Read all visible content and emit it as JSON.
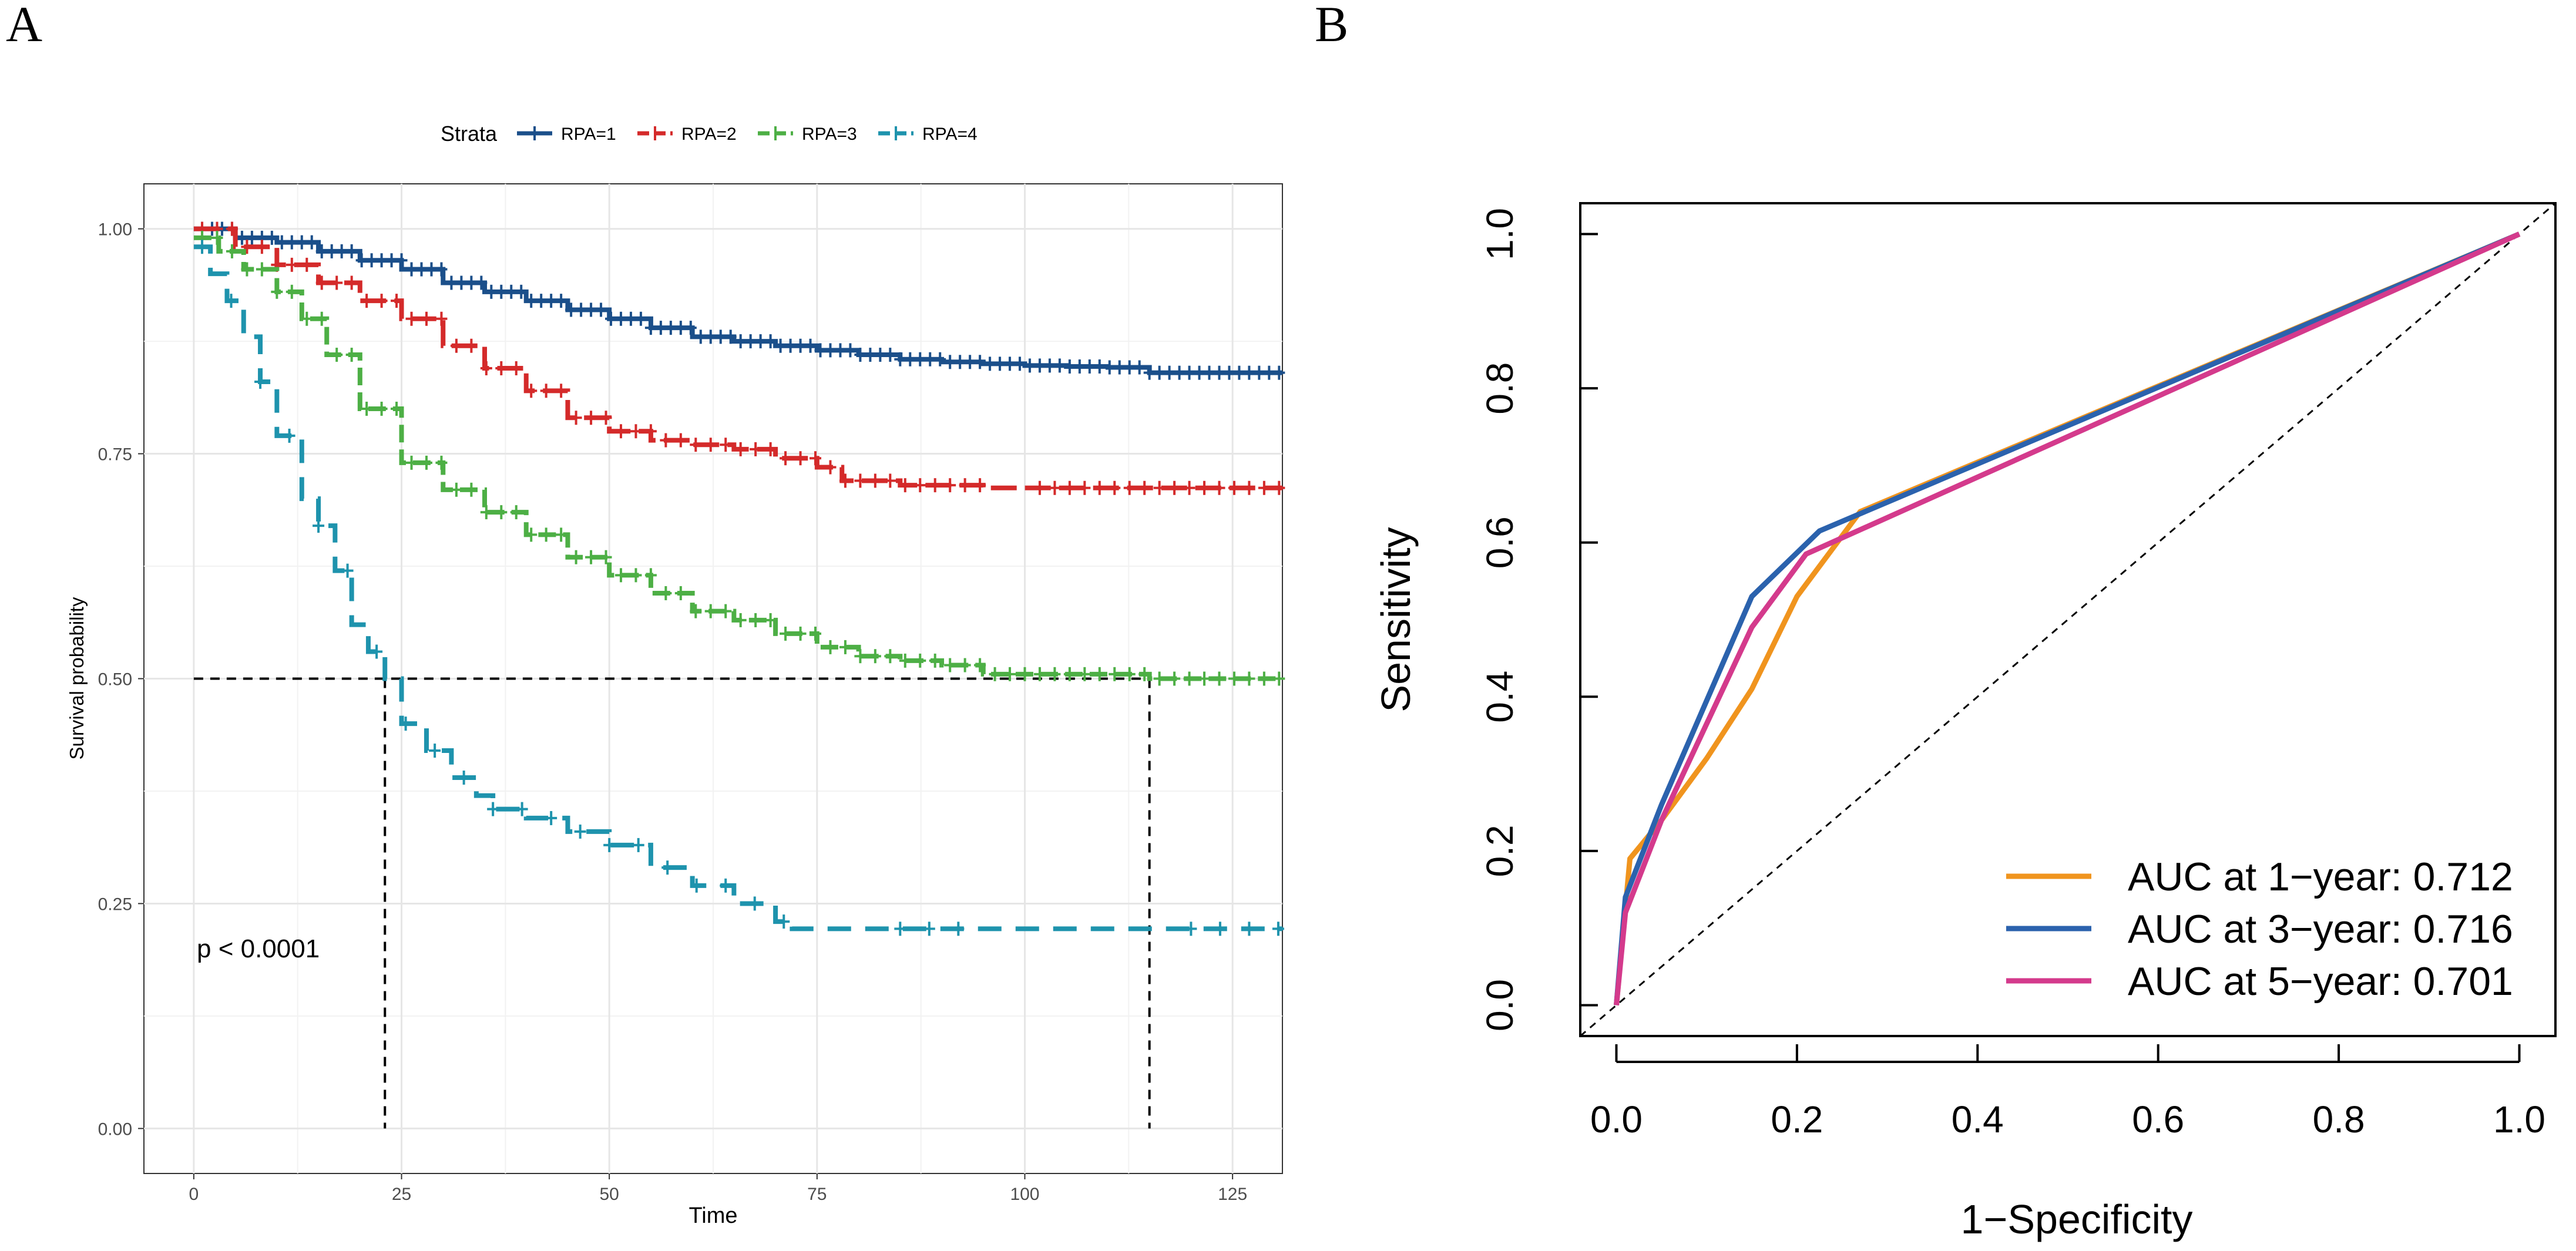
{
  "panels": {
    "a_label": "A",
    "b_label": "B"
  },
  "colors": {
    "rpa1": "#1B4F8A",
    "rpa2": "#D42A2A",
    "rpa3": "#4DAF45",
    "rpa4": "#1E93AD",
    "auc1": "#F0941E",
    "auc3": "#2B62AD",
    "auc5": "#D43A8C"
  },
  "chart_data": [
    {
      "type": "line",
      "subtype": "kaplan-meier",
      "title": "",
      "xlabel": "Time",
      "ylabel": "Survival probability",
      "xlim": [
        -6,
        131
      ],
      "ylim": [
        -0.05,
        1.05
      ],
      "xticks": [
        0,
        25,
        50,
        75,
        100,
        125
      ],
      "yticks": [
        0.0,
        0.25,
        0.5,
        0.75,
        1.0
      ],
      "ytick_labels": [
        "0.00",
        "0.25",
        "0.50",
        "0.75",
        "1.00"
      ],
      "legend_title": "Strata",
      "legend_position": "top",
      "annotation": "p < 0.0001",
      "median_line": {
        "y": 0.5,
        "x_end": 115,
        "medians": [
          23,
          115
        ]
      },
      "series": [
        {
          "name": "RPA=1",
          "color_key": "rpa1",
          "dash": "solid",
          "points": [
            [
              0,
              1.0
            ],
            [
              5,
              0.99
            ],
            [
              10,
              0.985
            ],
            [
              15,
              0.975
            ],
            [
              20,
              0.965
            ],
            [
              25,
              0.955
            ],
            [
              30,
              0.94
            ],
            [
              35,
              0.93
            ],
            [
              40,
              0.92
            ],
            [
              45,
              0.91
            ],
            [
              50,
              0.9
            ],
            [
              55,
              0.89
            ],
            [
              60,
              0.88
            ],
            [
              65,
              0.875
            ],
            [
              70,
              0.87
            ],
            [
              75,
              0.865
            ],
            [
              80,
              0.86
            ],
            [
              85,
              0.855
            ],
            [
              90,
              0.852
            ],
            [
              95,
              0.85
            ],
            [
              100,
              0.848
            ],
            [
              105,
              0.847
            ],
            [
              110,
              0.846
            ],
            [
              115,
              0.84
            ],
            [
              120,
              0.84
            ],
            [
              131,
              0.84
            ]
          ]
        },
        {
          "name": "RPA=2",
          "color_key": "rpa2",
          "dash": "longdash",
          "points": [
            [
              0,
              1.0
            ],
            [
              5,
              0.98
            ],
            [
              10,
              0.96
            ],
            [
              15,
              0.94
            ],
            [
              20,
              0.92
            ],
            [
              25,
              0.9
            ],
            [
              30,
              0.87
            ],
            [
              35,
              0.845
            ],
            [
              40,
              0.82
            ],
            [
              45,
              0.79
            ],
            [
              50,
              0.775
            ],
            [
              55,
              0.765
            ],
            [
              60,
              0.76
            ],
            [
              65,
              0.755
            ],
            [
              70,
              0.745
            ],
            [
              75,
              0.735
            ],
            [
              78,
              0.72
            ],
            [
              85,
              0.715
            ],
            [
              95,
              0.712
            ],
            [
              110,
              0.712
            ],
            [
              131,
              0.712
            ]
          ]
        },
        {
          "name": "RPA=3",
          "color_key": "rpa3",
          "dash": "medium",
          "points": [
            [
              0,
              0.99
            ],
            [
              3,
              0.975
            ],
            [
              6,
              0.955
            ],
            [
              10,
              0.93
            ],
            [
              13,
              0.9
            ],
            [
              16,
              0.86
            ],
            [
              20,
              0.8
            ],
            [
              25,
              0.74
            ],
            [
              30,
              0.71
            ],
            [
              35,
              0.685
            ],
            [
              40,
              0.66
            ],
            [
              45,
              0.635
            ],
            [
              50,
              0.615
            ],
            [
              55,
              0.595
            ],
            [
              60,
              0.575
            ],
            [
              65,
              0.565
            ],
            [
              70,
              0.55
            ],
            [
              75,
              0.535
            ],
            [
              80,
              0.525
            ],
            [
              85,
              0.52
            ],
            [
              90,
              0.515
            ],
            [
              95,
              0.505
            ],
            [
              100,
              0.505
            ],
            [
              115,
              0.5
            ],
            [
              131,
              0.5
            ]
          ]
        },
        {
          "name": "RPA=4",
          "color_key": "rpa4",
          "dash": "dash",
          "points": [
            [
              0,
              0.98
            ],
            [
              2,
              0.95
            ],
            [
              4,
              0.92
            ],
            [
              6,
              0.88
            ],
            [
              8,
              0.83
            ],
            [
              10,
              0.77
            ],
            [
              13,
              0.7
            ],
            [
              15,
              0.67
            ],
            [
              17,
              0.62
            ],
            [
              19,
              0.56
            ],
            [
              21,
              0.53
            ],
            [
              23,
              0.5
            ],
            [
              25,
              0.45
            ],
            [
              28,
              0.42
            ],
            [
              31,
              0.39
            ],
            [
              34,
              0.37
            ],
            [
              36,
              0.355
            ],
            [
              40,
              0.345
            ],
            [
              45,
              0.33
            ],
            [
              50,
              0.315
            ],
            [
              55,
              0.29
            ],
            [
              60,
              0.27
            ],
            [
              65,
              0.25
            ],
            [
              70,
              0.23
            ],
            [
              72,
              0.222
            ],
            [
              131,
              0.222
            ]
          ]
        }
      ]
    },
    {
      "type": "line",
      "subtype": "roc",
      "title": "",
      "xlabel": "1−Specificity",
      "ylabel": "Sensitivity",
      "xlim": [
        -0.04,
        1.04
      ],
      "ylim": [
        -0.04,
        1.04
      ],
      "xticks": [
        0.0,
        0.2,
        0.4,
        0.6,
        0.8,
        1.0
      ],
      "yticks": [
        0.0,
        0.2,
        0.4,
        0.6,
        0.8,
        1.0
      ],
      "tick_labels": [
        "0.0",
        "0.2",
        "0.4",
        "0.6",
        "0.8",
        "1.0"
      ],
      "legend_position": "bottom-right",
      "series": [
        {
          "name": "AUC at 1−year: 0.712",
          "color_key": "auc1",
          "x": [
            0,
            0.015,
            0.05,
            0.1,
            0.15,
            0.2,
            0.27,
            1.0
          ],
          "y": [
            0,
            0.19,
            0.24,
            0.32,
            0.41,
            0.53,
            0.64,
            1.0
          ]
        },
        {
          "name": "AUC at 3−year: 0.716",
          "color_key": "auc3",
          "x": [
            0,
            0.01,
            0.05,
            0.15,
            0.225,
            1.0
          ],
          "y": [
            0,
            0.14,
            0.26,
            0.53,
            0.615,
            1.0
          ]
        },
        {
          "name": "AUC at 5−year: 0.701",
          "color_key": "auc5",
          "x": [
            0,
            0.01,
            0.05,
            0.15,
            0.21,
            1.0
          ],
          "y": [
            0,
            0.12,
            0.24,
            0.49,
            0.585,
            1.0
          ]
        }
      ]
    }
  ]
}
